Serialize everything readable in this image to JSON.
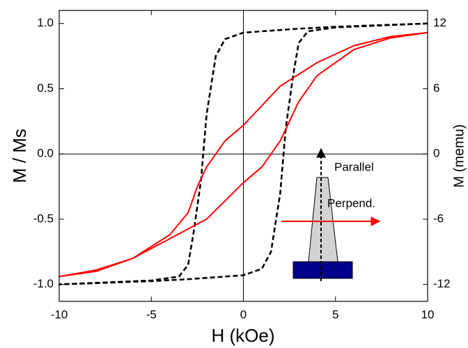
{
  "chart_data": {
    "type": "line",
    "xlabel": "H (kOe)",
    "ylabel": "M / Ms",
    "y2label": "M (memu)",
    "xlim": [
      -10,
      10
    ],
    "ylim": [
      -1.13,
      1.1
    ],
    "y2lim": [
      -13.56,
      13.2
    ],
    "xticks": [
      -10,
      -5,
      0,
      5,
      10
    ],
    "yticks": [
      {
        "value": -1,
        "label": "-1.0"
      },
      {
        "value": -0.5,
        "label": "-0.5"
      },
      {
        "value": 0,
        "label": "0.0"
      },
      {
        "value": 0.5,
        "label": "0.5"
      },
      {
        "value": 1,
        "label": "1.0"
      }
    ],
    "y2ticks": [
      -12,
      -6,
      0,
      6,
      12
    ],
    "zero_lines": true,
    "series": [
      {
        "color": "#000000",
        "linestyle": "dashed",
        "x": [
          10,
          5,
          3,
          0,
          -1,
          -1.5,
          -2,
          -2.3,
          -2.7,
          -3.0,
          -3.5,
          -5,
          -10,
          -5,
          -3,
          0,
          1,
          1.5,
          2,
          2.3,
          2.7,
          3.0,
          3.5,
          5,
          10
        ],
        "values": [
          1.0,
          0.975,
          0.96,
          0.93,
          0.88,
          0.75,
          0.3,
          -0.2,
          -0.6,
          -0.85,
          -0.94,
          -0.97,
          -1.0,
          -0.975,
          -0.96,
          -0.93,
          -0.88,
          -0.75,
          -0.3,
          0.2,
          0.6,
          0.85,
          0.94,
          0.97,
          1.0
        ]
      },
      {
        "color": "#ff0000",
        "linestyle": "solid",
        "x": [
          10,
          8,
          6,
          4,
          2,
          0,
          -1,
          -2,
          -2.5,
          -3,
          -4,
          -6,
          -8,
          -10,
          -8,
          -6,
          -4,
          -2,
          0,
          1,
          2,
          2.5,
          3,
          4,
          6,
          8,
          10
        ],
        "values": [
          0.93,
          0.9,
          0.83,
          0.7,
          0.52,
          0.22,
          0.1,
          -0.1,
          -0.25,
          -0.45,
          -0.62,
          -0.8,
          -0.9,
          -0.94,
          -0.89,
          -0.8,
          -0.65,
          -0.5,
          -0.22,
          -0.1,
          0.1,
          0.25,
          0.4,
          0.6,
          0.8,
          0.89,
          0.93
        ]
      }
    ],
    "annotations": [
      {
        "text": "Parallel"
      },
      {
        "text": "Perpend."
      }
    ]
  }
}
